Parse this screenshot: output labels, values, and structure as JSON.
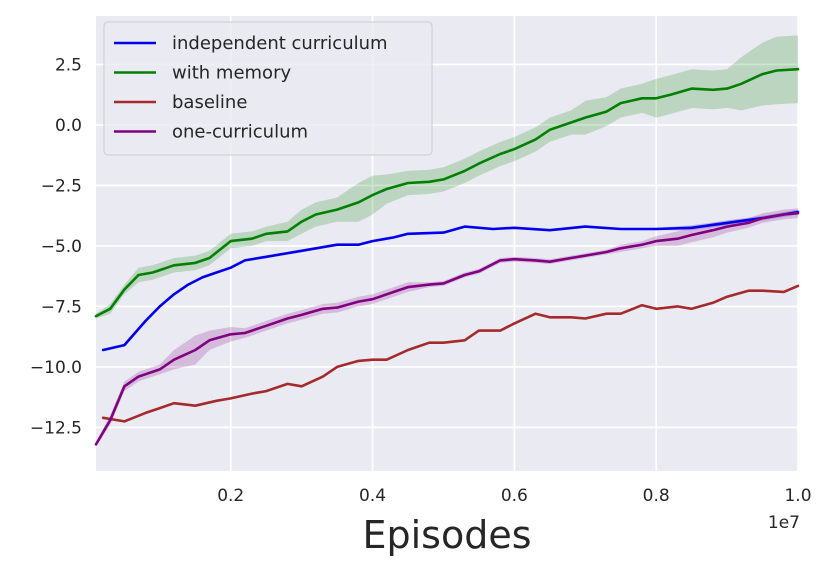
{
  "chart_data": {
    "type": "line",
    "title": "",
    "xlabel": "Episodes",
    "ylabel": "",
    "x_offset_label": "1e7",
    "xlim": [
      0.01,
      1.0
    ],
    "ylim": [
      -14.3,
      4.5
    ],
    "xticks": [
      0.2,
      0.4,
      0.6,
      0.8,
      1.0
    ],
    "xtick_labels": [
      "0.2",
      "0.4",
      "0.6",
      "0.8",
      "1.0"
    ],
    "yticks": [
      2.5,
      0.0,
      -2.5,
      -5.0,
      -7.5,
      -10.0,
      -12.5
    ],
    "ytick_labels": [
      "2.5",
      "0.0",
      "−2.5",
      "−5.0",
      "−7.5",
      "−10.0",
      "−12.5"
    ],
    "grid": true,
    "legend_position": "top-left",
    "series": [
      {
        "name": "independent curriculum",
        "color": "#0000ee",
        "x": [
          0.02,
          0.05,
          0.08,
          0.1,
          0.12,
          0.14,
          0.16,
          0.18,
          0.2,
          0.22,
          0.25,
          0.3,
          0.35,
          0.38,
          0.4,
          0.43,
          0.45,
          0.5,
          0.53,
          0.57,
          0.6,
          0.65,
          0.7,
          0.75,
          0.8,
          0.85,
          0.9,
          0.95,
          1.0
        ],
        "y": [
          -9.3,
          -9.1,
          -8.1,
          -7.5,
          -7.0,
          -6.6,
          -6.3,
          -6.1,
          -5.9,
          -5.6,
          -5.45,
          -5.2,
          -4.95,
          -4.95,
          -4.8,
          -4.65,
          -4.5,
          -4.45,
          -4.2,
          -4.3,
          -4.25,
          -4.35,
          -4.2,
          -4.3,
          -4.3,
          -4.25,
          -4.05,
          -3.85,
          -3.6
        ],
        "band": [
          0,
          0,
          0,
          0,
          0,
          0,
          0,
          0,
          0,
          0,
          0,
          0,
          0,
          0,
          0,
          0,
          0,
          0,
          0,
          0,
          0,
          0,
          0,
          0,
          0.05,
          0.1,
          0.1,
          0.1,
          0.1
        ]
      },
      {
        "name": "with memory",
        "color": "#008000",
        "x": [
          0.01,
          0.03,
          0.05,
          0.07,
          0.09,
          0.1,
          0.12,
          0.15,
          0.17,
          0.2,
          0.23,
          0.25,
          0.28,
          0.3,
          0.32,
          0.35,
          0.38,
          0.4,
          0.42,
          0.45,
          0.48,
          0.5,
          0.53,
          0.55,
          0.58,
          0.6,
          0.63,
          0.65,
          0.68,
          0.7,
          0.73,
          0.75,
          0.78,
          0.8,
          0.82,
          0.85,
          0.88,
          0.9,
          0.92,
          0.95,
          0.97,
          1.0
        ],
        "y": [
          -7.9,
          -7.6,
          -6.8,
          -6.2,
          -6.1,
          -6.0,
          -5.8,
          -5.7,
          -5.5,
          -4.8,
          -4.7,
          -4.5,
          -4.4,
          -4.0,
          -3.7,
          -3.5,
          -3.2,
          -2.9,
          -2.65,
          -2.4,
          -2.35,
          -2.25,
          -1.9,
          -1.6,
          -1.2,
          -1.0,
          -0.6,
          -0.2,
          0.1,
          0.3,
          0.55,
          0.9,
          1.1,
          1.1,
          1.25,
          1.5,
          1.45,
          1.5,
          1.7,
          2.1,
          2.25,
          2.3
        ],
        "band": [
          0.1,
          0.2,
          0.2,
          0.3,
          0.3,
          0.3,
          0.3,
          0.3,
          0.3,
          0.3,
          0.3,
          0.3,
          0.4,
          0.5,
          0.5,
          0.5,
          0.8,
          0.8,
          0.6,
          0.5,
          0.5,
          0.5,
          0.5,
          0.5,
          0.5,
          0.5,
          0.5,
          0.5,
          0.5,
          0.7,
          0.6,
          0.6,
          0.6,
          0.8,
          0.8,
          0.8,
          0.8,
          0.8,
          1.1,
          1.3,
          1.4,
          1.4
        ]
      },
      {
        "name": "baseline",
        "color": "#a52a2a",
        "x": [
          0.02,
          0.05,
          0.08,
          0.1,
          0.12,
          0.15,
          0.18,
          0.2,
          0.23,
          0.25,
          0.28,
          0.3,
          0.33,
          0.35,
          0.38,
          0.4,
          0.42,
          0.45,
          0.48,
          0.5,
          0.53,
          0.55,
          0.58,
          0.6,
          0.63,
          0.65,
          0.68,
          0.7,
          0.73,
          0.75,
          0.78,
          0.8,
          0.83,
          0.85,
          0.88,
          0.9,
          0.93,
          0.95,
          0.98,
          1.0
        ],
        "y": [
          -12.1,
          -12.25,
          -11.9,
          -11.7,
          -11.5,
          -11.6,
          -11.4,
          -11.3,
          -11.1,
          -11.0,
          -10.7,
          -10.8,
          -10.4,
          -10.0,
          -9.75,
          -9.7,
          -9.7,
          -9.3,
          -9.0,
          -9.0,
          -8.9,
          -8.5,
          -8.5,
          -8.2,
          -7.8,
          -7.95,
          -7.95,
          -8.0,
          -7.8,
          -7.8,
          -7.45,
          -7.6,
          -7.5,
          -7.6,
          -7.35,
          -7.1,
          -6.85,
          -6.85,
          -6.9,
          -6.65
        ],
        "band": [
          0,
          0,
          0,
          0,
          0,
          0,
          0,
          0,
          0,
          0,
          0,
          0,
          0,
          0,
          0,
          0,
          0,
          0,
          0,
          0,
          0,
          0,
          0,
          0,
          0,
          0,
          0,
          0,
          0,
          0,
          0,
          0,
          0,
          0,
          0,
          0,
          0,
          0,
          0,
          0
        ]
      },
      {
        "name": "one-curriculum",
        "color": "#800080",
        "x": [
          0.01,
          0.03,
          0.05,
          0.07,
          0.08,
          0.1,
          0.12,
          0.15,
          0.17,
          0.2,
          0.22,
          0.25,
          0.28,
          0.3,
          0.33,
          0.35,
          0.38,
          0.4,
          0.43,
          0.45,
          0.48,
          0.5,
          0.53,
          0.55,
          0.58,
          0.6,
          0.63,
          0.65,
          0.68,
          0.7,
          0.73,
          0.75,
          0.78,
          0.8,
          0.83,
          0.85,
          0.88,
          0.9,
          0.93,
          0.95,
          0.98,
          1.0
        ],
        "y": [
          -13.2,
          -12.2,
          -10.8,
          -10.4,
          -10.3,
          -10.1,
          -9.7,
          -9.3,
          -8.9,
          -8.65,
          -8.6,
          -8.3,
          -8.0,
          -7.85,
          -7.6,
          -7.55,
          -7.3,
          -7.2,
          -6.9,
          -6.7,
          -6.6,
          -6.55,
          -6.2,
          -6.05,
          -5.6,
          -5.55,
          -5.6,
          -5.65,
          -5.5,
          -5.4,
          -5.25,
          -5.1,
          -4.95,
          -4.8,
          -4.7,
          -4.55,
          -4.35,
          -4.2,
          -4.05,
          -3.85,
          -3.7,
          -3.65
        ],
        "band": [
          0.1,
          0.2,
          0.2,
          0.2,
          0.2,
          0.2,
          0.4,
          0.6,
          0.4,
          0.3,
          0.2,
          0.2,
          0.2,
          0.2,
          0.2,
          0.2,
          0.2,
          0.2,
          0.2,
          0.2,
          0.1,
          0.1,
          0.1,
          0.1,
          0.1,
          0.1,
          0.1,
          0.1,
          0.1,
          0.1,
          0.1,
          0.15,
          0.15,
          0.2,
          0.3,
          0.3,
          0.3,
          0.25,
          0.2,
          0.2,
          0.2,
          0.2
        ]
      }
    ]
  }
}
